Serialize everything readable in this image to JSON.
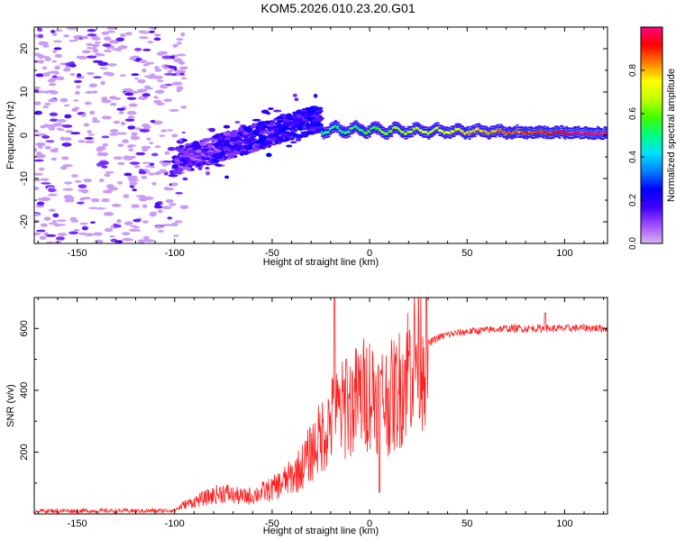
{
  "title": "KOM5.2026.010.23.20.G01",
  "chart_data": [
    {
      "type": "heatmap",
      "name": "spectrogram",
      "xlabel": "Height of straight line (km)",
      "ylabel": "Frequency (Hz)",
      "xlim": [
        -172,
        122
      ],
      "ylim": [
        -25,
        25
      ],
      "xticks": [
        -150,
        -100,
        -50,
        0,
        50,
        100
      ],
      "yticks": [
        -20,
        -10,
        0,
        10,
        20
      ],
      "colorbar": {
        "label": "Normalized spectral amplitude",
        "range": [
          0,
          1
        ],
        "ticks": [
          "0.0",
          "0.2",
          "0.4",
          "0.6",
          "0.8"
        ],
        "colors": [
          "#d8b4f0",
          "#a050ff",
          "#4000ff",
          "#0000ff",
          "#0080ff",
          "#00e0ff",
          "#00ff80",
          "#40ff00",
          "#c0ff00",
          "#ffff00",
          "#ff8000",
          "#ff0000",
          "#ff0080"
        ]
      },
      "features": [
        {
          "description": "scattered noise",
          "x_range": [
            -172,
            -100
          ],
          "freq_range": [
            -25,
            25
          ],
          "amplitude": 0.05
        },
        {
          "description": "chirp rising",
          "x_range": [
            -100,
            -25
          ],
          "freq_from": -6,
          "freq_to": 4,
          "amplitude": 0.2
        },
        {
          "description": "stable signal",
          "x_range": [
            -25,
            122
          ],
          "freq": 0.5,
          "amplitude": 0.8
        }
      ]
    },
    {
      "type": "line",
      "name": "snr",
      "xlabel": "Height of straight line (km)",
      "ylabel": "SNR (v/v)",
      "xlim": [
        -172,
        122
      ],
      "ylim": [
        0,
        700
      ],
      "xticks": [
        -150,
        -100,
        -50,
        0,
        50,
        100
      ],
      "yticks": [
        200,
        400,
        600
      ],
      "color": "#ff2020",
      "x": [
        -172,
        -160,
        -150,
        -140,
        -130,
        -120,
        -110,
        -100,
        -95,
        -90,
        -85,
        -80,
        -75,
        -70,
        -65,
        -60,
        -55,
        -50,
        -45,
        -40,
        -35,
        -30,
        -25,
        -20,
        -15,
        -10,
        -5,
        0,
        5,
        10,
        15,
        20,
        25,
        30,
        35,
        40,
        50,
        60,
        70,
        80,
        90,
        100,
        110,
        122
      ],
      "values": [
        10,
        10,
        10,
        10,
        10,
        10,
        10,
        12,
        30,
        40,
        50,
        60,
        70,
        60,
        55,
        60,
        70,
        80,
        100,
        120,
        150,
        200,
        250,
        300,
        330,
        350,
        380,
        400,
        380,
        370,
        400,
        480,
        530,
        550,
        570,
        580,
        590,
        595,
        600,
        600,
        600,
        600,
        602,
        600
      ],
      "spikes": [
        {
          "x": -18,
          "y": 700
        },
        {
          "x": -12,
          "y": 500
        },
        {
          "x": 5,
          "y": 70
        },
        {
          "x": 90,
          "y": 650
        }
      ]
    }
  ]
}
